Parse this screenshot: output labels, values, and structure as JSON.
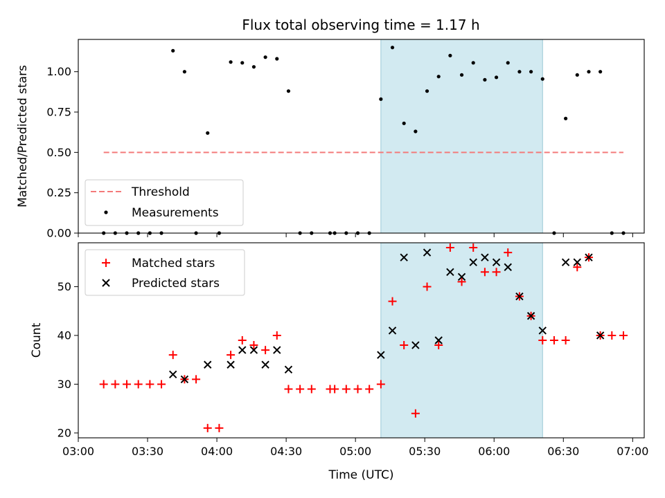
{
  "chart_data": [
    {
      "type": "scatter",
      "title": "Flux total observing time = 1.17 h",
      "ylabel": "Matched/Predicted stars",
      "xlabel": "",
      "x_unit": "time (UTC)",
      "xlim": [
        "03:00",
        "07:05"
      ],
      "ylim": [
        0,
        1.2
      ],
      "yticks": [
        0.0,
        0.25,
        0.5,
        0.75,
        1.0
      ],
      "ytick_labels": [
        "0.00",
        "0.25",
        "0.50",
        "0.75",
        "1.00"
      ],
      "shaded_interval": [
        "05:11",
        "06:21"
      ],
      "legend_position": "lower-left",
      "series": [
        {
          "name": "Threshold",
          "kind": "dashed-line",
          "color": "#f47a7a",
          "x": [
            "03:11",
            "06:56"
          ],
          "y": [
            0.5,
            0.5
          ]
        },
        {
          "name": "Measurements",
          "kind": "points",
          "color": "#000000",
          "x": [
            "03:11",
            "03:16",
            "03:21",
            "03:26",
            "03:31",
            "03:36",
            "03:41",
            "03:46",
            "03:51",
            "03:56",
            "04:01",
            "04:06",
            "04:11",
            "04:16",
            "04:21",
            "04:26",
            "04:31",
            "04:36",
            "04:41",
            "04:49",
            "04:51",
            "04:56",
            "05:01",
            "05:06",
            "05:11",
            "05:16",
            "05:21",
            "05:26",
            "05:31",
            "05:36",
            "05:41",
            "05:46",
            "05:51",
            "05:56",
            "06:01",
            "06:06",
            "06:11",
            "06:16",
            "06:21",
            "06:26",
            "06:31",
            "06:36",
            "06:41",
            "06:46",
            "06:51",
            "06:56"
          ],
          "y": [
            0,
            0,
            0,
            0,
            0,
            0,
            1.13,
            1.0,
            0,
            0.62,
            0,
            1.06,
            1.055,
            1.03,
            1.09,
            1.08,
            0.88,
            0,
            0,
            0,
            0,
            0,
            0,
            0,
            0.83,
            1.15,
            0.68,
            0.63,
            0.88,
            0.97,
            1.1,
            0.98,
            1.055,
            0.95,
            0.965,
            1.055,
            1.0,
            1.0,
            0.955,
            0,
            0.71,
            0.98,
            1.0,
            1.0,
            0,
            0
          ]
        }
      ]
    },
    {
      "type": "scatter",
      "title": "",
      "ylabel": "Count",
      "xlabel": "Time (UTC)",
      "xlim": [
        "03:00",
        "07:05"
      ],
      "ylim": [
        19,
        59
      ],
      "yticks": [
        20,
        30,
        40,
        50
      ],
      "ytick_labels": [
        "20",
        "30",
        "40",
        "50"
      ],
      "xticks": [
        "03:00",
        "03:30",
        "04:00",
        "04:30",
        "05:00",
        "05:30",
        "06:00",
        "06:30",
        "07:00"
      ],
      "xtick_labels": [
        "03:00",
        "03:30",
        "04:00",
        "04:30",
        "05:00",
        "05:30",
        "06:00",
        "06:30",
        "07:00"
      ],
      "shaded_interval": [
        "05:11",
        "06:21"
      ],
      "legend_position": "upper-left",
      "series": [
        {
          "name": "Matched stars",
          "kind": "plus",
          "color": "#ff0000",
          "x": [
            "03:11",
            "03:16",
            "03:21",
            "03:26",
            "03:31",
            "03:36",
            "03:41",
            "03:46",
            "03:51",
            "03:56",
            "04:01",
            "04:06",
            "04:11",
            "04:16",
            "04:21",
            "04:26",
            "04:31",
            "04:36",
            "04:41",
            "04:49",
            "04:51",
            "04:56",
            "05:01",
            "05:06",
            "05:11",
            "05:16",
            "05:21",
            "05:26",
            "05:31",
            "05:36",
            "05:41",
            "05:46",
            "05:51",
            "05:56",
            "06:01",
            "06:06",
            "06:11",
            "06:16",
            "06:21",
            "06:26",
            "06:31",
            "06:36",
            "06:41",
            "06:46",
            "06:51",
            "06:56"
          ],
          "y": [
            30,
            30,
            30,
            30,
            30,
            30,
            36,
            31,
            31,
            21,
            21,
            36,
            39,
            38,
            37,
            40,
            29,
            29,
            29,
            29,
            29,
            29,
            29,
            29,
            30,
            47,
            38,
            24,
            50,
            38,
            58,
            51,
            58,
            53,
            53,
            57,
            48,
            44,
            39,
            39,
            39,
            54,
            56,
            40,
            40,
            40
          ]
        },
        {
          "name": "Predicted stars",
          "kind": "cross",
          "color": "#000000",
          "x": [
            "03:41",
            "03:46",
            "03:56",
            "04:06",
            "04:11",
            "04:16",
            "04:21",
            "04:26",
            "04:31",
            "05:11",
            "05:16",
            "05:21",
            "05:26",
            "05:31",
            "05:36",
            "05:41",
            "05:46",
            "05:51",
            "05:56",
            "06:01",
            "06:06",
            "06:11",
            "06:16",
            "06:21",
            "06:31",
            "06:36",
            "06:41",
            "06:46"
          ],
          "y": [
            32,
            31,
            34,
            34,
            37,
            37,
            34,
            37,
            33,
            36,
            41,
            56,
            38,
            57,
            39,
            53,
            52,
            55,
            56,
            55,
            54,
            48,
            44,
            41,
            55,
            55,
            56,
            40
          ]
        }
      ]
    }
  ]
}
